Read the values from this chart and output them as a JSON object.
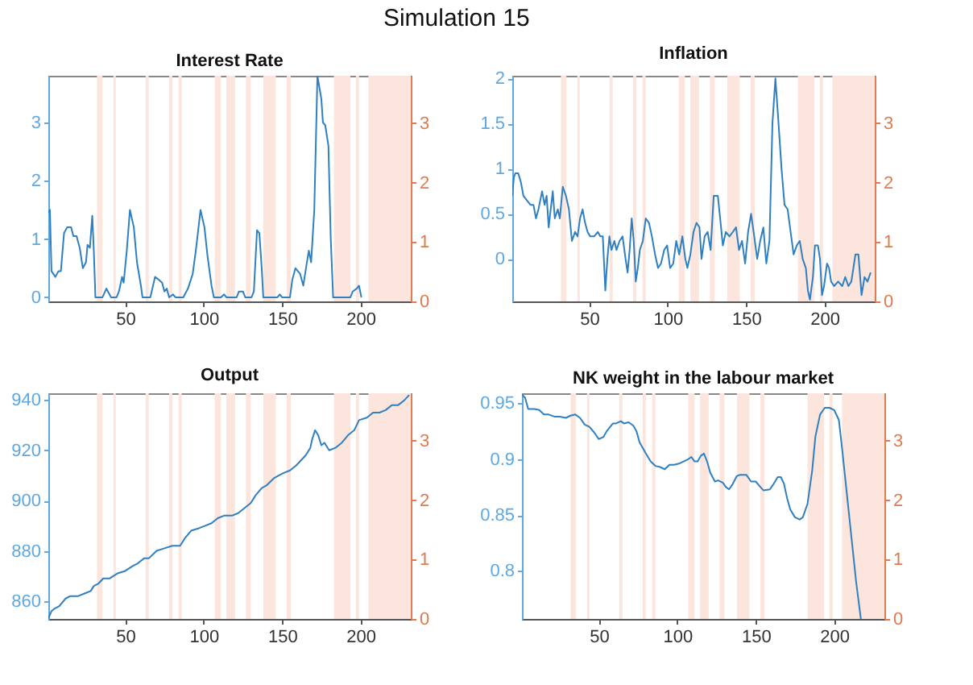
{
  "chart_data": [
    {
      "type": "line",
      "title": "Interest Rate",
      "annotations": [
        "Simulation 15"
      ],
      "xlim": [
        1,
        232
      ],
      "xticks": [
        50,
        100,
        150,
        200
      ],
      "ylim": [
        -0.07,
        3.8
      ],
      "yticks": [
        0,
        1,
        2,
        3
      ],
      "y2lim": [
        0,
        3.8
      ],
      "y2ticks": [
        0,
        1,
        2,
        3
      ],
      "bands": [
        {
          "axis": "x",
          "from": 32,
          "to": 35.5,
          "color": "#fbe5dd"
        },
        {
          "axis": "x",
          "from": 42.5,
          "to": 44,
          "color": "#fbe5dd"
        },
        {
          "axis": "x",
          "from": 63,
          "to": 65,
          "color": "#fbe5dd"
        },
        {
          "axis": "x",
          "from": 78,
          "to": 80,
          "color": "#fbe5dd"
        },
        {
          "axis": "x",
          "from": 84,
          "to": 86,
          "color": "#fbe5dd"
        },
        {
          "axis": "x",
          "from": 107,
          "to": 111,
          "color": "#fbe5dd"
        },
        {
          "axis": "x",
          "from": 114.5,
          "to": 120,
          "color": "#fbe5dd"
        },
        {
          "axis": "x",
          "from": 127,
          "to": 130,
          "color": "#fbe5dd"
        },
        {
          "axis": "x",
          "from": 138,
          "to": 146,
          "color": "#fbe5dd"
        },
        {
          "axis": "x",
          "from": 153,
          "to": 155.5,
          "color": "#fbe5dd"
        },
        {
          "axis": "x",
          "from": 183,
          "to": 193.5,
          "color": "#fbe5dd"
        },
        {
          "axis": "x",
          "from": 197,
          "to": 199,
          "color": "#fbe5dd"
        },
        {
          "axis": "x",
          "from": 205,
          "to": 232,
          "color": "#fbe5dd"
        }
      ],
      "series": [
        {
          "color": "#2f7fc1",
          "x": [
            1,
            2,
            3,
            5.5,
            7.5,
            9,
            11,
            13,
            15.5,
            17,
            19,
            21,
            23,
            25,
            26,
            27.5,
            29,
            30,
            31,
            35.5,
            38,
            39,
            41,
            44.5,
            46,
            48,
            49,
            51,
            53,
            55.5,
            57.5,
            60,
            61,
            66,
            69,
            71.5,
            73.5,
            75,
            76.5,
            78,
            80.5,
            82,
            87,
            90,
            93,
            95,
            98,
            100.5,
            102.5,
            105,
            106.5,
            111,
            113,
            114.5,
            121,
            122.5,
            125,
            126.5,
            130.5,
            132,
            134,
            135.5,
            137,
            138,
            147,
            148.5,
            150,
            155,
            156.5,
            158.5,
            161.5,
            163.5,
            165.5,
            167,
            168.5,
            170.5,
            172.5,
            175,
            176,
            177.5,
            179.5,
            181,
            182.5,
            193.5,
            195,
            197.5,
            199,
            200.5
          ],
          "values": [
            1.45,
            1.5,
            0.45,
            0.35,
            0.45,
            0.45,
            1.1,
            1.2,
            1.2,
            1.05,
            1.05,
            0.85,
            0.5,
            0.6,
            0.9,
            0.85,
            1.4,
            0.8,
            0,
            0,
            0.15,
            0.1,
            0,
            0,
            0.1,
            0.35,
            0.25,
            0.8,
            1.5,
            1.2,
            0.6,
            0.2,
            0,
            0,
            0.35,
            0.3,
            0.25,
            0.1,
            0.15,
            0,
            0.05,
            0,
            0,
            0.15,
            0.4,
            0.8,
            1.5,
            1.2,
            0.7,
            0.2,
            0,
            0,
            0.05,
            0,
            0,
            0.1,
            0.1,
            0,
            0,
            0.1,
            1.15,
            1.1,
            0.5,
            0,
            0,
            0.05,
            0,
            0,
            0.3,
            0.5,
            0.4,
            0.2,
            0.55,
            0.8,
            0.6,
            1.5,
            3.8,
            3.4,
            3.0,
            2.95,
            2.6,
            1.0,
            0,
            0,
            0.1,
            0.15,
            0.2,
            0
          ]
        }
      ]
    },
    {
      "type": "line",
      "title": "Inflation",
      "xlim": [
        1,
        232
      ],
      "xticks": [
        50,
        100,
        150,
        200
      ],
      "ylim": [
        -0.47,
        2.03
      ],
      "yticks": [
        0,
        0.5,
        1,
        1.5,
        2
      ],
      "y2lim": [
        0,
        3.8
      ],
      "y2ticks": [
        0,
        1,
        2,
        3
      ],
      "bands": [
        {
          "axis": "x",
          "from": 32,
          "to": 35.5,
          "color": "#fbe5dd"
        },
        {
          "axis": "x",
          "from": 42.5,
          "to": 44,
          "color": "#fbe5dd"
        },
        {
          "axis": "x",
          "from": 63,
          "to": 65,
          "color": "#fbe5dd"
        },
        {
          "axis": "x",
          "from": 78,
          "to": 80,
          "color": "#fbe5dd"
        },
        {
          "axis": "x",
          "from": 84,
          "to": 86,
          "color": "#fbe5dd"
        },
        {
          "axis": "x",
          "from": 107,
          "to": 111,
          "color": "#fbe5dd"
        },
        {
          "axis": "x",
          "from": 114.5,
          "to": 120,
          "color": "#fbe5dd"
        },
        {
          "axis": "x",
          "from": 127,
          "to": 130,
          "color": "#fbe5dd"
        },
        {
          "axis": "x",
          "from": 138,
          "to": 146,
          "color": "#fbe5dd"
        },
        {
          "axis": "x",
          "from": 153,
          "to": 155.5,
          "color": "#fbe5dd"
        },
        {
          "axis": "x",
          "from": 183,
          "to": 193.5,
          "color": "#fbe5dd"
        },
        {
          "axis": "x",
          "from": 197,
          "to": 199,
          "color": "#fbe5dd"
        },
        {
          "axis": "x",
          "from": 205,
          "to": 232,
          "color": "#fbe5dd"
        }
      ],
      "series": [
        {
          "color": "#2f7fc1",
          "x": [
            1,
            2,
            2.9,
            4.8,
            6.5,
            8.1,
            10.3,
            12.6,
            14.5,
            16.1,
            17.7,
            20,
            21.6,
            22.9,
            24.2,
            25.5,
            26.8,
            28.1,
            30,
            31.3,
            33.2,
            35.2,
            37.1,
            39,
            41,
            42.6,
            44.2,
            45.8,
            47.4,
            49,
            50.6,
            53.2,
            55.5,
            57.1,
            58.7,
            60.3,
            61.6,
            62.9,
            64.2,
            66.1,
            67.4,
            69.4,
            71.3,
            73.2,
            74.5,
            75.8,
            77.1,
            78.4,
            79.7,
            81,
            82.3,
            84.2,
            86.1,
            88.1,
            90,
            92,
            93.9,
            95.8,
            97.8,
            99.7,
            101.6,
            103.6,
            105.5,
            107.4,
            109.4,
            111.3,
            112.6,
            114.5,
            116.5,
            118.4,
            120.3,
            121.6,
            123.6,
            125.5,
            127.4,
            129.4,
            132,
            133.2,
            135.2,
            137.1,
            139.4,
            141.6,
            143.6,
            145.5,
            147.4,
            149.4,
            151.3,
            153.2,
            155.2,
            157.1,
            159,
            161,
            162.9,
            164.9,
            166.8,
            168.7,
            170.7,
            172.6,
            174.5,
            176.5,
            178.4,
            180.3,
            182.3,
            184.2,
            186.1,
            188.1,
            189.4,
            190.7,
            192.6,
            193.9,
            195.8,
            197.1,
            198.4,
            199.7,
            201.6,
            202.9,
            204.2,
            206.1,
            208.7,
            211.3,
            213.2,
            215.2,
            217.1,
            219.7,
            221.6,
            223.6,
            225.5,
            227.4,
            229.4
          ],
          "values": [
            0.7,
            0.9,
            0.95,
            0.95,
            0.85,
            0.7,
            0.65,
            0.6,
            0.6,
            0.45,
            0.55,
            0.75,
            0.6,
            0.7,
            0.35,
            0.55,
            0.75,
            0.45,
            0.55,
            0.45,
            0.8,
            0.7,
            0.55,
            0.2,
            0.3,
            0.25,
            0.45,
            0.55,
            0.4,
            0.3,
            0.25,
            0.25,
            0.3,
            0.25,
            0.25,
            -0.35,
            0,
            0.25,
            0.1,
            0.2,
            0.1,
            0.2,
            0.25,
            0,
            -0.15,
            0.1,
            0.45,
            0.2,
            -0.25,
            -0.1,
            0.1,
            0.2,
            0.45,
            0.4,
            0.25,
            0.05,
            -0.1,
            -0.05,
            0.1,
            0.15,
            -0.1,
            -0.05,
            0.2,
            0.05,
            0.25,
            0,
            -0.1,
            0.05,
            0.3,
            0.4,
            0.35,
            0,
            0.25,
            0.3,
            0.1,
            0.7,
            0.7,
            0.5,
            0.15,
            0.3,
            0.25,
            0.3,
            0.35,
            0.1,
            0.2,
            -0.05,
            0.3,
            0.5,
            0.25,
            0,
            0.2,
            0.35,
            -0.05,
            0.2,
            1.5,
            2.0,
            1.5,
            1.0,
            0.6,
            0.55,
            0.3,
            0.05,
            0.15,
            0.2,
            0,
            -0.1,
            -0.35,
            -0.45,
            -0.2,
            0.15,
            0.15,
            0,
            -0.4,
            -0.3,
            -0.05,
            -0.1,
            -0.25,
            -0.3,
            -0.25,
            -0.3,
            -0.2,
            -0.3,
            -0.25,
            0.05,
            0.05,
            -0.4,
            -0.2,
            -0.25,
            -0.15
          ]
        }
      ]
    },
    {
      "type": "line",
      "title": "Output",
      "xlim": [
        1,
        232
      ],
      "xticks": [
        50,
        100,
        150,
        200
      ],
      "ylim": [
        852.9,
        942.7
      ],
      "yticks": [
        860,
        880,
        900,
        920,
        940
      ],
      "y2lim": [
        0,
        3.8
      ],
      "y2ticks": [
        0,
        1,
        2,
        3
      ],
      "bands": [
        {
          "axis": "x",
          "from": 32,
          "to": 35.5,
          "color": "#fbe5dd"
        },
        {
          "axis": "x",
          "from": 42.5,
          "to": 44,
          "color": "#fbe5dd"
        },
        {
          "axis": "x",
          "from": 63,
          "to": 65,
          "color": "#fbe5dd"
        },
        {
          "axis": "x",
          "from": 78,
          "to": 80,
          "color": "#fbe5dd"
        },
        {
          "axis": "x",
          "from": 84,
          "to": 86,
          "color": "#fbe5dd"
        },
        {
          "axis": "x",
          "from": 107,
          "to": 111,
          "color": "#fbe5dd"
        },
        {
          "axis": "x",
          "from": 114.5,
          "to": 120,
          "color": "#fbe5dd"
        },
        {
          "axis": "x",
          "from": 127,
          "to": 130,
          "color": "#fbe5dd"
        },
        {
          "axis": "x",
          "from": 138,
          "to": 146,
          "color": "#fbe5dd"
        },
        {
          "axis": "x",
          "from": 153,
          "to": 155.5,
          "color": "#fbe5dd"
        },
        {
          "axis": "x",
          "from": 183,
          "to": 193.5,
          "color": "#fbe5dd"
        },
        {
          "axis": "x",
          "from": 197,
          "to": 199,
          "color": "#fbe5dd"
        },
        {
          "axis": "x",
          "from": 205,
          "to": 232,
          "color": "#fbe5dd"
        }
      ],
      "series": [
        {
          "color": "#2f7fc1",
          "x": [
            1,
            3,
            5,
            8,
            12,
            15,
            20,
            24,
            28,
            30,
            33,
            36,
            40,
            45,
            50,
            55,
            58,
            62,
            65,
            70,
            75,
            80,
            85,
            88,
            92,
            97,
            101,
            105,
            109,
            113,
            118,
            122,
            126,
            130,
            133,
            137,
            140,
            145,
            148,
            151,
            155,
            159,
            162,
            165,
            168,
            169,
            171,
            173,
            175,
            177,
            180,
            184,
            188,
            192,
            196,
            199,
            204,
            208,
            212,
            216,
            220,
            224,
            228,
            231
          ],
          "values": [
            853,
            856,
            857,
            858,
            861,
            862,
            862,
            863,
            864,
            866,
            867,
            869,
            869,
            871,
            872,
            874,
            875,
            877,
            877,
            880,
            881,
            882,
            882,
            885,
            888,
            889,
            890,
            891,
            893,
            894,
            894,
            895,
            897,
            899,
            902,
            905,
            906,
            909,
            910,
            911,
            912,
            914,
            916,
            918,
            921,
            924,
            928,
            926,
            922,
            923,
            920,
            921,
            923,
            926,
            928,
            932,
            933,
            935,
            935,
            936,
            938,
            938,
            940,
            942
          ]
        }
      ]
    },
    {
      "type": "line",
      "title": "NK weight in the labour market",
      "xlim": [
        1,
        232
      ],
      "xticks": [
        50,
        100,
        150,
        200
      ],
      "ylim": [
        0.757,
        0.959
      ],
      "yticks": [
        0.8,
        0.85,
        0.9,
        0.95
      ],
      "y2lim": [
        0,
        3.8
      ],
      "y2ticks": [
        0,
        1,
        2,
        3
      ],
      "bands": [
        {
          "axis": "x",
          "from": 32,
          "to": 35.5,
          "color": "#fbe5dd"
        },
        {
          "axis": "x",
          "from": 42.5,
          "to": 44,
          "color": "#fbe5dd"
        },
        {
          "axis": "x",
          "from": 63,
          "to": 65,
          "color": "#fbe5dd"
        },
        {
          "axis": "x",
          "from": 78,
          "to": 80,
          "color": "#fbe5dd"
        },
        {
          "axis": "x",
          "from": 84,
          "to": 86,
          "color": "#fbe5dd"
        },
        {
          "axis": "x",
          "from": 107,
          "to": 111,
          "color": "#fbe5dd"
        },
        {
          "axis": "x",
          "from": 114.5,
          "to": 120,
          "color": "#fbe5dd"
        },
        {
          "axis": "x",
          "from": 127,
          "to": 130,
          "color": "#fbe5dd"
        },
        {
          "axis": "x",
          "from": 138,
          "to": 146,
          "color": "#fbe5dd"
        },
        {
          "axis": "x",
          "from": 153,
          "to": 155.5,
          "color": "#fbe5dd"
        },
        {
          "axis": "x",
          "from": 183,
          "to": 193.5,
          "color": "#fbe5dd"
        },
        {
          "axis": "x",
          "from": 197,
          "to": 199,
          "color": "#fbe5dd"
        },
        {
          "axis": "x",
          "from": 205,
          "to": 232,
          "color": "#fbe5dd"
        }
      ],
      "series": [
        {
          "color": "#2f7fc1",
          "x": [
            1,
            3,
            5,
            9,
            12,
            15,
            18,
            22,
            25,
            29,
            32,
            35,
            38,
            41,
            44,
            47,
            50,
            53,
            55,
            59,
            61,
            64,
            66,
            69,
            72,
            74,
            76,
            80,
            83,
            86,
            89,
            92,
            95,
            98,
            101,
            104,
            107,
            109,
            111,
            113,
            115,
            117,
            119,
            121,
            124,
            126,
            129,
            131,
            133,
            135,
            138,
            140,
            144,
            147,
            150,
            153,
            155,
            159,
            161,
            164,
            166,
            168,
            170,
            172,
            175,
            178,
            180,
            183,
            186,
            188,
            191,
            194,
            197,
            200,
            203,
            205,
            208,
            211,
            214,
            217
          ],
          "values": [
            0.958,
            0.955,
            0.945,
            0.945,
            0.944,
            0.94,
            0.94,
            0.938,
            0.938,
            0.937,
            0.939,
            0.94,
            0.937,
            0.931,
            0.929,
            0.924,
            0.918,
            0.92,
            0.925,
            0.932,
            0.932,
            0.934,
            0.932,
            0.933,
            0.93,
            0.925,
            0.915,
            0.905,
            0.898,
            0.894,
            0.893,
            0.891,
            0.895,
            0.895,
            0.896,
            0.898,
            0.9,
            0.902,
            0.898,
            0.898,
            0.903,
            0.905,
            0.898,
            0.888,
            0.88,
            0.881,
            0.879,
            0.875,
            0.873,
            0.877,
            0.885,
            0.886,
            0.886,
            0.88,
            0.88,
            0.875,
            0.872,
            0.873,
            0.877,
            0.884,
            0.884,
            0.878,
            0.865,
            0.855,
            0.848,
            0.846,
            0.848,
            0.86,
            0.89,
            0.92,
            0.94,
            0.946,
            0.946,
            0.944,
            0.935,
            0.91,
            0.87,
            0.83,
            0.79,
            0.757
          ]
        }
      ]
    }
  ]
}
